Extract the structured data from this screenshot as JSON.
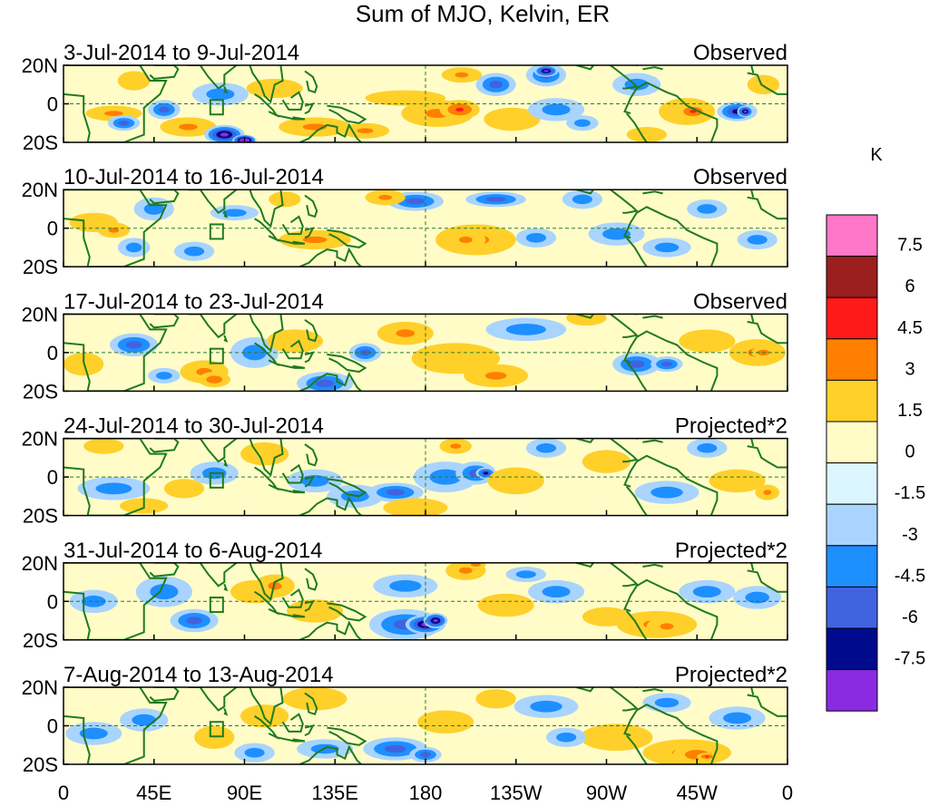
{
  "chart_data": {
    "type": "heatmap",
    "title": "Sum of MJO, Kelvin, ER",
    "units": "K",
    "x_ticks": [
      "0",
      "45E",
      "90E",
      "135E",
      "180",
      "135W",
      "90W",
      "45W",
      "0"
    ],
    "y_ticks": [
      "20N",
      "0",
      "20S"
    ],
    "x_range_deg": [
      0,
      360
    ],
    "y_range_deg": [
      -20,
      20
    ],
    "colorbar": {
      "levels": [
        "7.5",
        "6",
        "4.5",
        "3",
        "1.5",
        "0",
        "-1.5",
        "-3",
        "-4.5",
        "-6",
        "-7.5"
      ],
      "colors": [
        "#ff77c8",
        "#9b1f1f",
        "#ff1a1a",
        "#ff7f00",
        "#ffd02a",
        "#fffcc8",
        "#dcf6ff",
        "#a8d4ff",
        "#1e8fff",
        "#4163e0",
        "#000a8c",
        "#8a2be2"
      ]
    },
    "panels": [
      {
        "label": "3-Jul-2014 to 9-Jul-2014",
        "tag": "Observed",
        "blobs": [
          [
            25,
            -5,
            14,
            4,
            4
          ],
          [
            50,
            -3,
            8,
            5,
            -3
          ],
          [
            30,
            -10,
            8,
            4,
            -3
          ],
          [
            62,
            -12,
            14,
            5,
            3
          ],
          [
            35,
            12,
            8,
            5,
            2
          ],
          [
            80,
            -16,
            10,
            5,
            -6
          ],
          [
            90,
            -19,
            6,
            3,
            -9
          ],
          [
            78,
            5,
            14,
            6,
            -2
          ],
          [
            105,
            8,
            14,
            5,
            2
          ],
          [
            125,
            -12,
            18,
            5,
            3
          ],
          [
            150,
            -14,
            12,
            4,
            3
          ],
          [
            170,
            3,
            20,
            4,
            2
          ],
          [
            186,
            -5,
            18,
            7,
            4
          ],
          [
            197,
            -3,
            10,
            5,
            6
          ],
          [
            223,
            -8,
            14,
            6,
            1
          ],
          [
            215,
            10,
            10,
            6,
            -3
          ],
          [
            245,
            -3,
            14,
            6,
            -2
          ],
          [
            258,
            -10,
            8,
            4,
            -1
          ],
          [
            240,
            15,
            10,
            6,
            -4
          ],
          [
            240,
            17,
            6,
            3,
            -6
          ],
          [
            198,
            15,
            10,
            4,
            3
          ],
          [
            285,
            10,
            12,
            6,
            -2
          ],
          [
            310,
            -4,
            14,
            7,
            4
          ],
          [
            313,
            -4,
            8,
            4,
            6
          ],
          [
            335,
            -4,
            10,
            5,
            -5
          ],
          [
            339,
            -4,
            4,
            3,
            -7
          ],
          [
            290,
            -16,
            10,
            4,
            2
          ],
          [
            348,
            10,
            8,
            5,
            1
          ]
        ]
      },
      {
        "label": "10-Jul-2014 to 16-Jul-2014",
        "tag": "Observed",
        "blobs": [
          [
            15,
            3,
            12,
            5,
            2
          ],
          [
            25,
            -1,
            8,
            4,
            4
          ],
          [
            35,
            -10,
            8,
            5,
            -2
          ],
          [
            45,
            10,
            10,
            6,
            -2
          ],
          [
            65,
            -12,
            10,
            5,
            -2
          ],
          [
            85,
            8,
            12,
            4,
            -1
          ],
          [
            125,
            -6,
            18,
            5,
            3
          ],
          [
            175,
            14,
            14,
            5,
            -3
          ],
          [
            205,
            -6,
            20,
            8,
            3
          ],
          [
            200,
            -6,
            10,
            5,
            4
          ],
          [
            215,
            15,
            15,
            4,
            -3
          ],
          [
            235,
            -5,
            10,
            5,
            -2
          ],
          [
            258,
            15,
            10,
            5,
            -1
          ],
          [
            275,
            -3,
            14,
            6,
            -2
          ],
          [
            300,
            -10,
            12,
            5,
            -2
          ],
          [
            320,
            10,
            10,
            5,
            -2
          ],
          [
            345,
            -6,
            10,
            5,
            -1
          ],
          [
            160,
            16,
            10,
            4,
            3
          ],
          [
            110,
            15,
            8,
            4,
            2
          ]
        ]
      },
      {
        "label": "17-Jul-2014 to 23-Jul-2014",
        "tag": "Observed",
        "blobs": [
          [
            10,
            -6,
            10,
            6,
            2
          ],
          [
            35,
            4,
            12,
            6,
            -3
          ],
          [
            50,
            -12,
            8,
            4,
            -2
          ],
          [
            70,
            -10,
            12,
            6,
            3
          ],
          [
            75,
            -14,
            8,
            4,
            5
          ],
          [
            95,
            0,
            12,
            8,
            -1
          ],
          [
            115,
            6,
            14,
            6,
            2
          ],
          [
            130,
            -16,
            14,
            6,
            -4
          ],
          [
            150,
            0,
            8,
            5,
            -3
          ],
          [
            170,
            10,
            14,
            6,
            3
          ],
          [
            195,
            -3,
            22,
            8,
            2
          ],
          [
            215,
            -12,
            16,
            6,
            3
          ],
          [
            230,
            12,
            20,
            6,
            -2
          ],
          [
            285,
            -6,
            12,
            6,
            -3
          ],
          [
            300,
            -6,
            8,
            4,
            -4
          ],
          [
            320,
            6,
            14,
            6,
            1
          ],
          [
            345,
            0,
            14,
            7,
            3
          ],
          [
            348,
            0,
            6,
            3,
            5
          ],
          [
            260,
            18,
            10,
            4,
            2
          ]
        ]
      },
      {
        "label": "24-Jul-2014 to 30-Jul-2014",
        "tag": "Projected*2",
        "blobs": [
          [
            20,
            16,
            10,
            4,
            2
          ],
          [
            25,
            -6,
            18,
            6,
            -2
          ],
          [
            60,
            -6,
            10,
            5,
            2
          ],
          [
            75,
            2,
            12,
            6,
            -2
          ],
          [
            100,
            12,
            12,
            6,
            2
          ],
          [
            125,
            -2,
            14,
            6,
            -2
          ],
          [
            145,
            -10,
            14,
            6,
            -2
          ],
          [
            165,
            -8,
            14,
            5,
            -3
          ],
          [
            190,
            0,
            16,
            8,
            -2
          ],
          [
            205,
            2,
            10,
            6,
            -3
          ],
          [
            210,
            2,
            5,
            3,
            -5
          ],
          [
            175,
            -16,
            16,
            5,
            2
          ],
          [
            195,
            16,
            8,
            4,
            3
          ],
          [
            225,
            -2,
            14,
            7,
            2
          ],
          [
            240,
            15,
            10,
            5,
            -1
          ],
          [
            270,
            8,
            12,
            6,
            2
          ],
          [
            300,
            -8,
            16,
            6,
            -2
          ],
          [
            335,
            -2,
            14,
            6,
            2
          ],
          [
            350,
            -8,
            6,
            4,
            3
          ],
          [
            320,
            15,
            10,
            5,
            -1
          ],
          [
            40,
            -15,
            12,
            4,
            2
          ]
        ]
      },
      {
        "label": "31-Jul-2014 to 6-Aug-2014",
        "tag": "Projected*2",
        "blobs": [
          [
            15,
            0,
            12,
            6,
            -1
          ],
          [
            50,
            5,
            14,
            8,
            -2
          ],
          [
            65,
            -10,
            12,
            6,
            -3
          ],
          [
            95,
            5,
            12,
            6,
            2
          ],
          [
            105,
            8,
            10,
            6,
            3
          ],
          [
            125,
            -5,
            14,
            6,
            2
          ],
          [
            170,
            -12,
            18,
            8,
            -3
          ],
          [
            180,
            -12,
            10,
            5,
            -6
          ],
          [
            185,
            -10,
            6,
            4,
            -7
          ],
          [
            200,
            16,
            10,
            5,
            3
          ],
          [
            205,
            19,
            5,
            2,
            5
          ],
          [
            170,
            8,
            16,
            6,
            -2
          ],
          [
            220,
            -2,
            14,
            6,
            2
          ],
          [
            245,
            5,
            14,
            6,
            -2
          ],
          [
            270,
            -8,
            12,
            5,
            1
          ],
          [
            295,
            -12,
            20,
            7,
            3
          ],
          [
            300,
            -13,
            10,
            5,
            4
          ],
          [
            320,
            5,
            14,
            6,
            -2
          ],
          [
            345,
            2,
            12,
            6,
            -2
          ],
          [
            230,
            14,
            10,
            4,
            -2
          ]
        ]
      },
      {
        "label": "7-Aug-2014 to 13-Aug-2014",
        "tag": "Projected*2",
        "blobs": [
          [
            15,
            -4,
            14,
            6,
            -2
          ],
          [
            40,
            3,
            12,
            6,
            -1
          ],
          [
            75,
            -6,
            10,
            6,
            2
          ],
          [
            95,
            -14,
            10,
            5,
            -2
          ],
          [
            100,
            5,
            12,
            6,
            2
          ],
          [
            125,
            14,
            16,
            6,
            2
          ],
          [
            130,
            -12,
            14,
            5,
            -1
          ],
          [
            165,
            -12,
            16,
            6,
            -3
          ],
          [
            180,
            -15,
            8,
            4,
            -4
          ],
          [
            190,
            2,
            14,
            6,
            2
          ],
          [
            215,
            14,
            10,
            5,
            2
          ],
          [
            240,
            10,
            16,
            6,
            -2
          ],
          [
            275,
            -6,
            18,
            7,
            2
          ],
          [
            250,
            -6,
            10,
            5,
            -2
          ],
          [
            310,
            -14,
            22,
            7,
            3
          ],
          [
            315,
            -15,
            12,
            5,
            5
          ],
          [
            320,
            -16,
            5,
            2,
            7
          ],
          [
            335,
            4,
            14,
            6,
            -2
          ],
          [
            300,
            12,
            12,
            5,
            -1
          ]
        ]
      }
    ]
  }
}
